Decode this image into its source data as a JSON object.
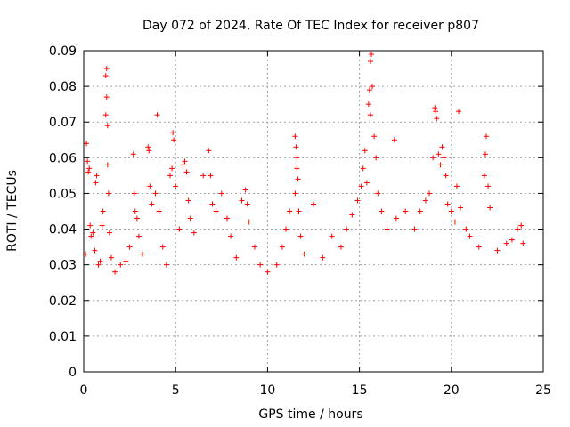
{
  "chart_data": {
    "type": "scatter",
    "title": "Day 072 of 2024, Rate Of TEC Index for receiver p807",
    "xlabel": "GPS time / hours",
    "ylabel": "ROTI / TECUs",
    "xlim": [
      0,
      25
    ],
    "ylim": [
      0,
      0.09
    ],
    "x_ticks": [
      "0",
      "5",
      "10",
      "15",
      "20",
      "25"
    ],
    "y_ticks": [
      "0",
      "0.01",
      "0.02",
      "0.03",
      "0.04",
      "0.05",
      "0.06",
      "0.07",
      "0.08",
      "0.09"
    ],
    "grid": true,
    "marker": "plus",
    "colors": {
      "series": "#ff0000",
      "grid": "#a0a0a0",
      "axis": "#000000"
    },
    "series": [
      {
        "values": [
          [
            0.1,
            0.033
          ],
          [
            0.15,
            0.064
          ],
          [
            0.2,
            0.059
          ],
          [
            0.25,
            0.056
          ],
          [
            0.3,
            0.057
          ],
          [
            0.35,
            0.041
          ],
          [
            0.4,
            0.038
          ],
          [
            0.5,
            0.039
          ],
          [
            0.6,
            0.034
          ],
          [
            0.65,
            0.053
          ],
          [
            0.7,
            0.055
          ],
          [
            0.8,
            0.03
          ],
          [
            0.9,
            0.031
          ],
          [
            1.0,
            0.041
          ],
          [
            1.05,
            0.045
          ],
          [
            1.2,
            0.083
          ],
          [
            1.25,
            0.085
          ],
          [
            1.25,
            0.077
          ],
          [
            1.2,
            0.072
          ],
          [
            1.3,
            0.069
          ],
          [
            1.3,
            0.058
          ],
          [
            1.35,
            0.05
          ],
          [
            1.4,
            0.039
          ],
          [
            1.5,
            0.032
          ],
          [
            1.7,
            0.028
          ],
          [
            2.0,
            0.03
          ],
          [
            2.3,
            0.031
          ],
          [
            2.5,
            0.035
          ],
          [
            2.7,
            0.061
          ],
          [
            2.75,
            0.05
          ],
          [
            2.8,
            0.045
          ],
          [
            2.9,
            0.043
          ],
          [
            3.0,
            0.038
          ],
          [
            3.2,
            0.033
          ],
          [
            3.5,
            0.063
          ],
          [
            3.55,
            0.062
          ],
          [
            3.6,
            0.052
          ],
          [
            3.7,
            0.047
          ],
          [
            3.9,
            0.05
          ],
          [
            4.0,
            0.072
          ],
          [
            4.1,
            0.045
          ],
          [
            4.3,
            0.035
          ],
          [
            4.5,
            0.03
          ],
          [
            4.7,
            0.055
          ],
          [
            4.8,
            0.057
          ],
          [
            4.85,
            0.067
          ],
          [
            4.9,
            0.065
          ],
          [
            5.0,
            0.052
          ],
          [
            5.2,
            0.04
          ],
          [
            5.4,
            0.058
          ],
          [
            5.5,
            0.059
          ],
          [
            5.6,
            0.056
          ],
          [
            5.7,
            0.048
          ],
          [
            5.8,
            0.043
          ],
          [
            6.0,
            0.039
          ],
          [
            6.5,
            0.055
          ],
          [
            6.8,
            0.062
          ],
          [
            6.9,
            0.055
          ],
          [
            7.0,
            0.047
          ],
          [
            7.2,
            0.045
          ],
          [
            7.5,
            0.05
          ],
          [
            7.8,
            0.043
          ],
          [
            8.0,
            0.038
          ],
          [
            8.3,
            0.032
          ],
          [
            8.6,
            0.048
          ],
          [
            8.8,
            0.051
          ],
          [
            8.9,
            0.047
          ],
          [
            9.0,
            0.042
          ],
          [
            9.3,
            0.035
          ],
          [
            9.6,
            0.03
          ],
          [
            10.0,
            0.028
          ],
          [
            10.5,
            0.03
          ],
          [
            10.8,
            0.035
          ],
          [
            11.0,
            0.04
          ],
          [
            11.2,
            0.045
          ],
          [
            11.5,
            0.066
          ],
          [
            11.55,
            0.063
          ],
          [
            11.6,
            0.06
          ],
          [
            11.6,
            0.057
          ],
          [
            11.65,
            0.054
          ],
          [
            11.5,
            0.05
          ],
          [
            11.7,
            0.045
          ],
          [
            11.8,
            0.038
          ],
          [
            12.0,
            0.033
          ],
          [
            12.5,
            0.047
          ],
          [
            13.0,
            0.032
          ],
          [
            13.5,
            0.038
          ],
          [
            14.0,
            0.035
          ],
          [
            14.3,
            0.04
          ],
          [
            14.6,
            0.044
          ],
          [
            14.9,
            0.048
          ],
          [
            15.1,
            0.052
          ],
          [
            15.2,
            0.057
          ],
          [
            15.3,
            0.062
          ],
          [
            15.4,
            0.053
          ],
          [
            15.5,
            0.075
          ],
          [
            15.55,
            0.079
          ],
          [
            15.6,
            0.087
          ],
          [
            15.65,
            0.089
          ],
          [
            15.7,
            0.08
          ],
          [
            15.6,
            0.072
          ],
          [
            15.8,
            0.066
          ],
          [
            15.9,
            0.06
          ],
          [
            16.0,
            0.05
          ],
          [
            16.2,
            0.045
          ],
          [
            16.5,
            0.04
          ],
          [
            16.9,
            0.065
          ],
          [
            17.0,
            0.043
          ],
          [
            17.5,
            0.045
          ],
          [
            18.0,
            0.04
          ],
          [
            18.3,
            0.045
          ],
          [
            18.6,
            0.048
          ],
          [
            18.8,
            0.05
          ],
          [
            19.0,
            0.06
          ],
          [
            19.1,
            0.074
          ],
          [
            19.15,
            0.073
          ],
          [
            19.2,
            0.071
          ],
          [
            19.3,
            0.061
          ],
          [
            19.4,
            0.058
          ],
          [
            19.5,
            0.063
          ],
          [
            19.6,
            0.06
          ],
          [
            19.7,
            0.055
          ],
          [
            19.8,
            0.047
          ],
          [
            20.0,
            0.045
          ],
          [
            20.2,
            0.042
          ],
          [
            20.3,
            0.052
          ],
          [
            20.4,
            0.073
          ],
          [
            20.5,
            0.046
          ],
          [
            20.8,
            0.04
          ],
          [
            21.0,
            0.038
          ],
          [
            21.5,
            0.035
          ],
          [
            21.8,
            0.055
          ],
          [
            21.85,
            0.061
          ],
          [
            21.9,
            0.066
          ],
          [
            22.0,
            0.052
          ],
          [
            22.1,
            0.046
          ],
          [
            22.5,
            0.034
          ],
          [
            23.0,
            0.036
          ],
          [
            23.3,
            0.037
          ],
          [
            23.6,
            0.04
          ],
          [
            23.8,
            0.041
          ],
          [
            23.9,
            0.036
          ]
        ]
      }
    ]
  }
}
